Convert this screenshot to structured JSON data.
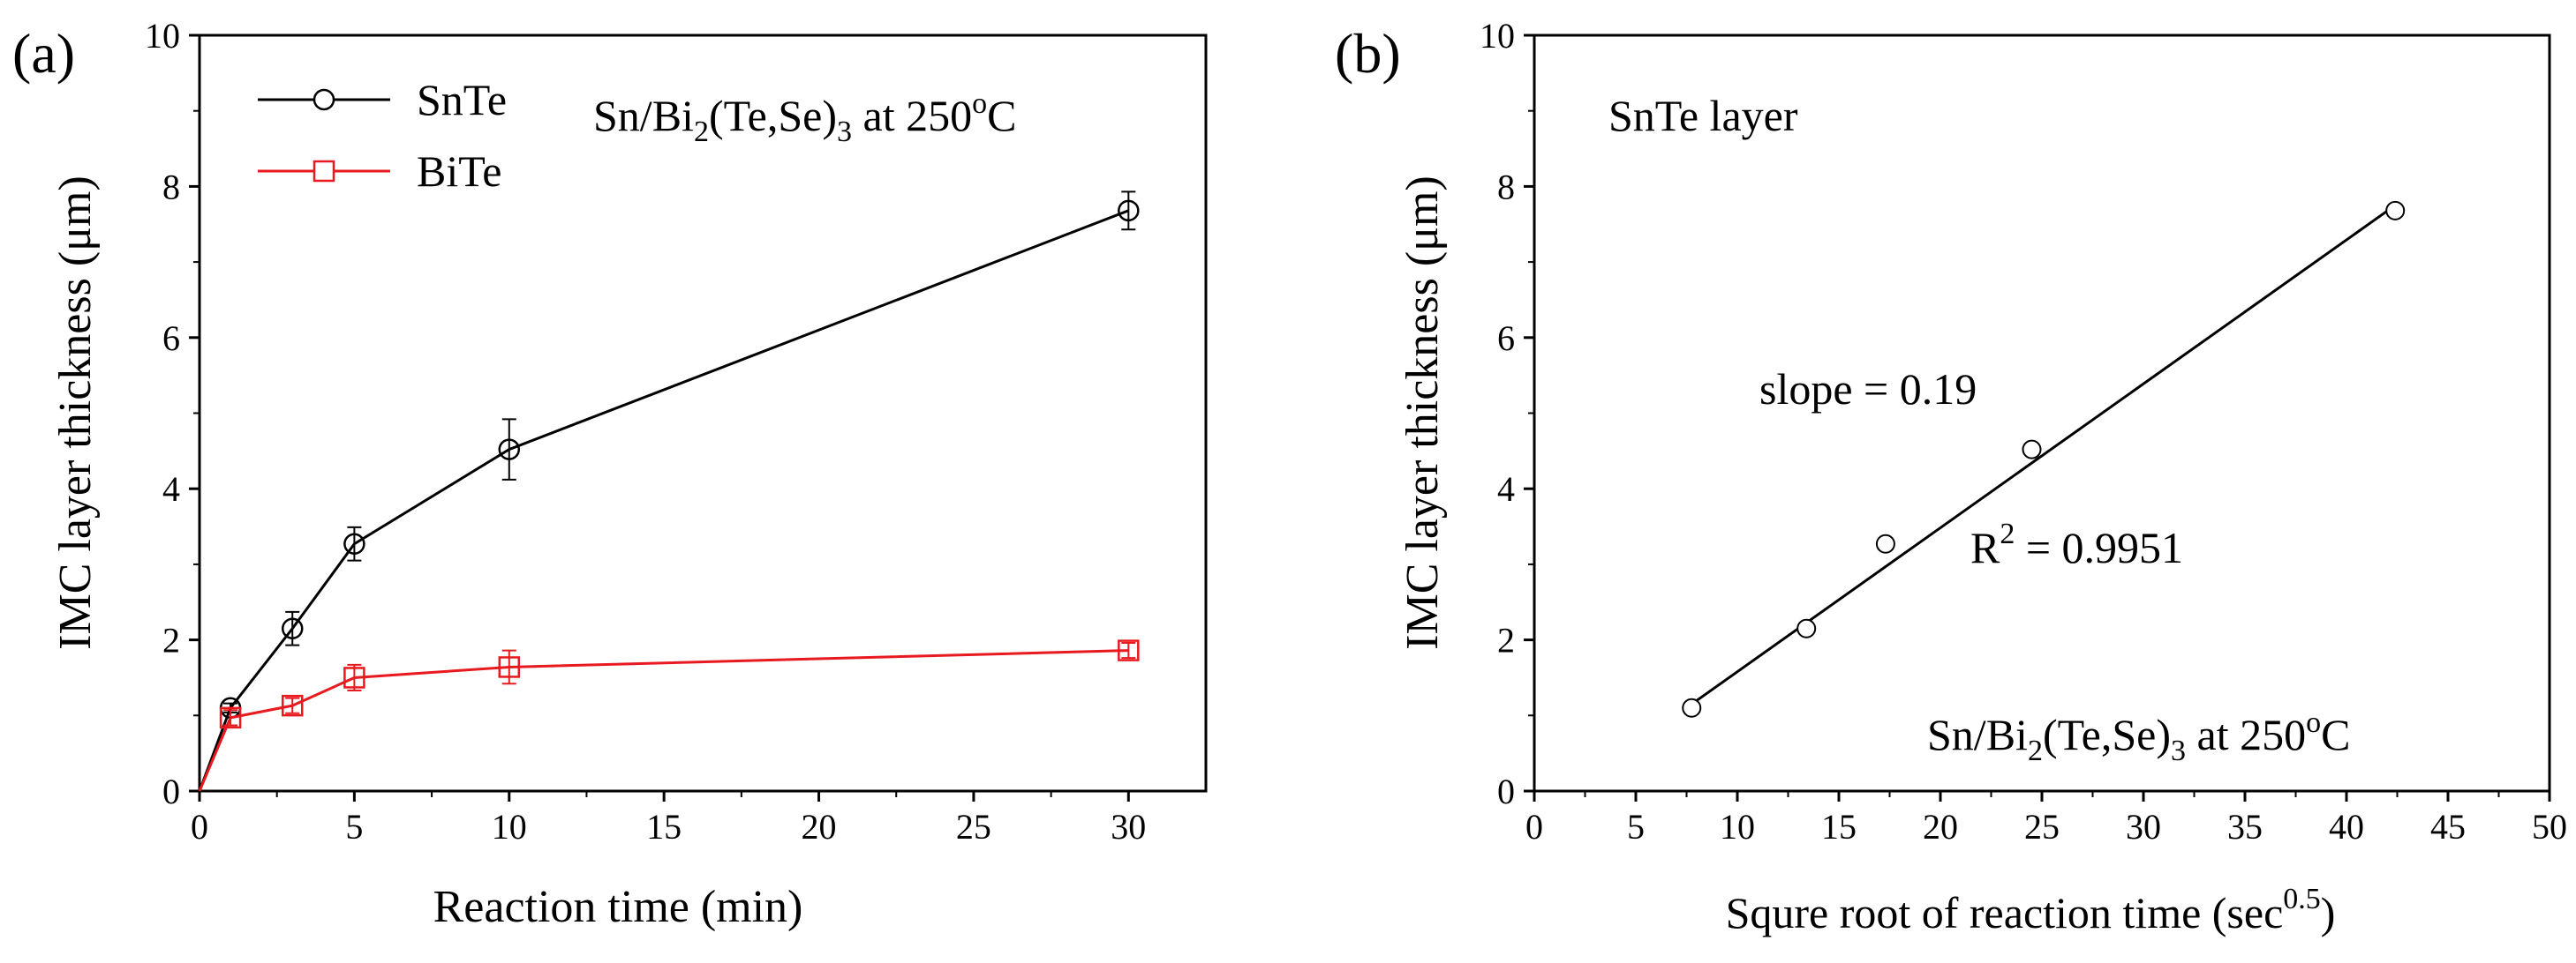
{
  "colors": {
    "snte": "#000000",
    "bite": "#e8191f",
    "fit_line": "#000000"
  },
  "chart_data": [
    {
      "panel": "(a)",
      "type": "line",
      "xlabel": "Reaction time (min)",
      "ylabel": "IMC layer thickness (μm)",
      "xlim": [
        0,
        32.5
      ],
      "ylim": [
        0,
        10
      ],
      "xticks": [
        0,
        5,
        10,
        15,
        20,
        25,
        30
      ],
      "yticks": [
        0,
        2,
        4,
        6,
        8,
        10
      ],
      "annotation": {
        "pre": "Sn/Bi",
        "sub1": "2",
        "mid": "(Te,Se)",
        "sub2": "3",
        "post": " at 250",
        "sup": "o",
        "unit": "C"
      },
      "legend": {
        "position": "top-left",
        "entries": [
          "SnTe",
          "BiTe"
        ]
      },
      "series": [
        {
          "name": "SnTe",
          "marker": "circle",
          "color": "#000000",
          "x": [
            0,
            1,
            3,
            5,
            10,
            30
          ],
          "y": [
            0,
            1.1,
            2.15,
            3.27,
            4.52,
            7.68
          ],
          "err": [
            0,
            0.06,
            0.22,
            0.22,
            0.4,
            0.25
          ]
        },
        {
          "name": "BiTe",
          "marker": "square",
          "color": "#e8191f",
          "x": [
            0,
            1,
            3,
            5,
            10,
            30
          ],
          "y": [
            0,
            0.97,
            1.13,
            1.5,
            1.64,
            1.86
          ],
          "err": [
            0,
            0.1,
            0.1,
            0.17,
            0.22,
            0.1
          ]
        }
      ]
    },
    {
      "panel": "(b)",
      "type": "scatter",
      "xlabel_main": "Squre root of reaction time (sec",
      "xlabel_sup": "0.5",
      "xlabel_close": ")",
      "ylabel": "IMC layer thickness (μm)",
      "xlim": [
        0,
        50
      ],
      "ylim": [
        0,
        10
      ],
      "xticks": [
        0,
        5,
        10,
        15,
        20,
        25,
        30,
        35,
        40,
        45,
        50
      ],
      "yticks": [
        0,
        2,
        4,
        6,
        8,
        10
      ],
      "title_inside": "SnTe layer",
      "slope_label": "slope = 0.19",
      "r2": {
        "pre": "R",
        "sup": "2",
        "post": " = 0.9951"
      },
      "annotation": {
        "pre": "Sn/Bi",
        "sub1": "2",
        "mid": "(Te,Se)",
        "sub2": "3",
        "post": " at 250",
        "sup": "o",
        "unit": "C"
      },
      "points": {
        "x": [
          7.75,
          13.4,
          17.3,
          24.5,
          42.4
        ],
        "y": [
          1.1,
          2.15,
          3.27,
          4.52,
          7.68
        ]
      },
      "fit": {
        "x": [
          7.75,
          42.4
        ],
        "y": [
          1.15,
          7.75
        ]
      }
    }
  ]
}
